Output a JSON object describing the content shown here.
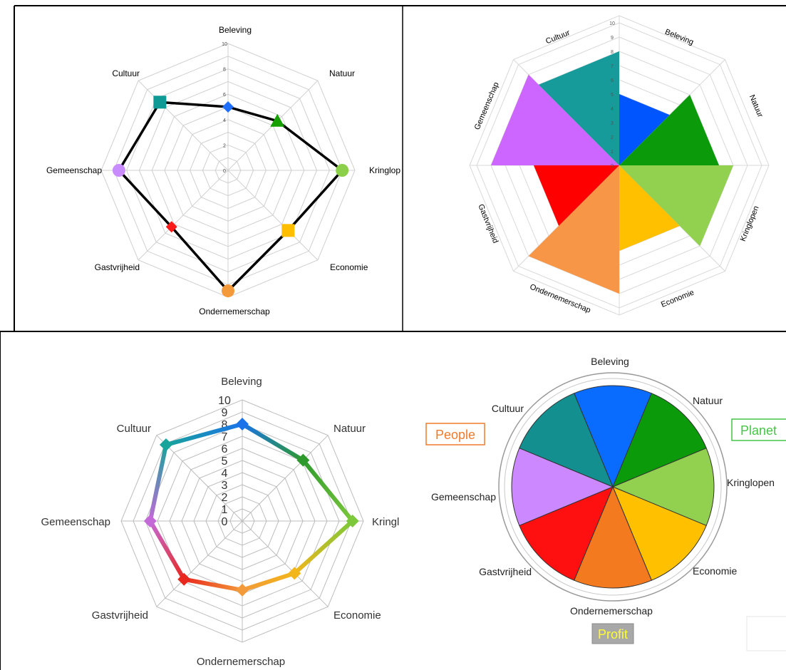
{
  "categories": [
    "Beleving",
    "Natuur",
    "Kringlopen",
    "Economie",
    "Ondernemerschap",
    "Gastvrijheid",
    "Gemeenschap",
    "Cultuur"
  ],
  "chart_data": [
    {
      "type": "radar",
      "categories": [
        "Beleving",
        "Natuur",
        "Kringlop",
        "Economie",
        "Ondernemerschap",
        "Gastvrijheid",
        "Gemeenschap",
        "Cultuur"
      ],
      "series": [
        {
          "values": [
            5.0,
            5.5,
            9.0,
            6.7,
            9.5,
            6.3,
            8.6,
            7.6
          ]
        }
      ],
      "ylim": [
        0,
        10
      ],
      "ticks": [
        "0",
        "2",
        "4",
        "6",
        "8",
        "10"
      ],
      "grid": true,
      "marker_colors": [
        "#1f6fff",
        "#16a000",
        "#8bd048",
        "#ffbf00",
        "#f59a3a",
        "#ff1a1a",
        "#c88cff",
        "#0f9a96"
      ],
      "marker_shapes": [
        "diamond",
        "triangle",
        "circle",
        "square",
        "circle",
        "diamond",
        "circle",
        "square"
      ]
    },
    {
      "type": "polar-area",
      "categories": [
        "Beleving",
        "Natuur",
        "Kringlopen",
        "Economie",
        "Ondernemerschap",
        "Gastvrijheid",
        "Gemeenschap",
        "Cultuur"
      ],
      "values": [
        5,
        7,
        8,
        6,
        9,
        6,
        9,
        8
      ],
      "ylim": [
        0,
        10
      ],
      "ticks": [
        "0",
        "1",
        "2",
        "3",
        "4",
        "5",
        "6",
        "7",
        "8",
        "9",
        "10"
      ],
      "grid": true,
      "colors": [
        "#0055ff",
        "#0a9a0a",
        "#92d050",
        "#ffc000",
        "#f79646",
        "#ff0000",
        "#cc66ff",
        "#169a9a"
      ]
    },
    {
      "type": "radar",
      "categories": [
        "Beleving",
        "Natuur",
        "Kringl",
        "Economie",
        "Ondernemerschap",
        "Gastvrijheid",
        "Gemeenschap",
        "Cultuur"
      ],
      "series": [
        {
          "values": [
            8.0,
            7.1,
            9.1,
            6.1,
            5.7,
            6.8,
            7.6,
            8.9
          ]
        }
      ],
      "ylim": [
        0,
        10
      ],
      "ticks": [
        "0",
        "1",
        "2",
        "3",
        "4",
        "5",
        "6",
        "7",
        "8",
        "9",
        "10"
      ],
      "grid": true,
      "colors": [
        "#1a73e8",
        "#2e9a2e",
        "#7cc83a",
        "#f2b61a",
        "#f39a3a",
        "#e8281e",
        "#c46ad8",
        "#18a39b"
      ]
    },
    {
      "type": "pie",
      "categories": [
        "Beleving",
        "Natuur",
        "Kringlopen",
        "Economie",
        "Ondernemerschap",
        "Gastvrijheid",
        "Gemeenschap",
        "Cultuur"
      ],
      "values": [
        1,
        1,
        1,
        1,
        1,
        1,
        1,
        1
      ],
      "colors": [
        "#0a6cff",
        "#0a9a0a",
        "#92d050",
        "#ffc000",
        "#f47a20",
        "#ff1010",
        "#cc88ff",
        "#138f8f"
      ],
      "annotations": [
        {
          "text": "People",
          "color": "#f07a2c"
        },
        {
          "text": "Planet",
          "color": "#47c447"
        },
        {
          "text": "Profit",
          "color": "#ffff33",
          "background": "#a8a8a8"
        }
      ]
    }
  ]
}
